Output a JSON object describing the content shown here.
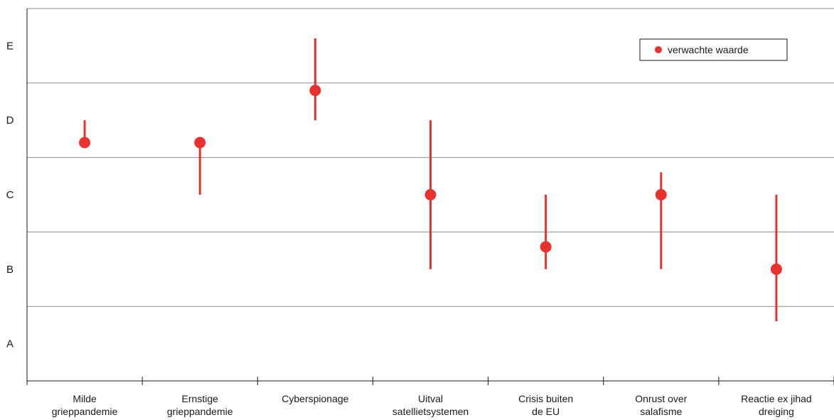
{
  "chart_data": {
    "type": "scatter",
    "title": "",
    "xlabel": "",
    "ylabel": "",
    "y_levels": [
      "A",
      "B",
      "C",
      "D",
      "E"
    ],
    "ylim": [
      0,
      5
    ],
    "grid": true,
    "legend": {
      "position": "top-right",
      "label": "verwachte waarde"
    },
    "marker_color": "#e8322f",
    "categories": [
      {
        "lines": [
          "Milde",
          "grieppandemie"
        ],
        "value": 3.2,
        "low": 3.2,
        "high": 3.5
      },
      {
        "lines": [
          "Ernstige",
          "grieppandemie"
        ],
        "value": 3.2,
        "low": 2.5,
        "high": 3.2
      },
      {
        "lines": [
          "Cyberspionage"
        ],
        "value": 3.9,
        "low": 3.5,
        "high": 4.6
      },
      {
        "lines": [
          "Uitval",
          "satellietsystemen"
        ],
        "value": 2.5,
        "low": 1.5,
        "high": 3.5
      },
      {
        "lines": [
          "Crisis buiten",
          "de EU"
        ],
        "value": 1.8,
        "low": 1.5,
        "high": 2.5
      },
      {
        "lines": [
          "Onrust over",
          "salafisme"
        ],
        "value": 2.5,
        "low": 1.5,
        "high": 2.8
      },
      {
        "lines": [
          "Reactie ex jihad",
          "dreiging"
        ],
        "value": 1.5,
        "low": 0.8,
        "high": 2.5
      }
    ]
  }
}
